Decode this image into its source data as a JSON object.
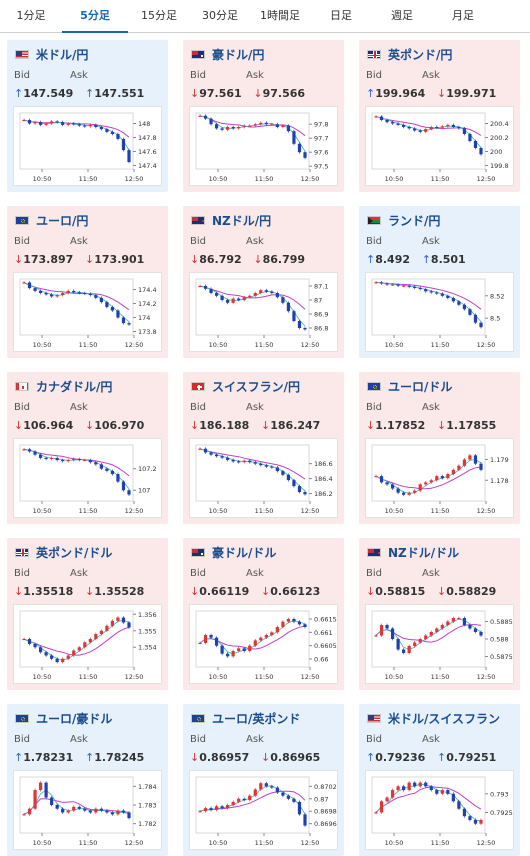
{
  "tabs": [
    {
      "label": "1分足",
      "active": false
    },
    {
      "label": "5分足",
      "active": true
    },
    {
      "label": "15分足",
      "active": false
    },
    {
      "label": "30分足",
      "active": false
    },
    {
      "label": "1時間足",
      "active": false
    },
    {
      "label": "日足",
      "active": false
    },
    {
      "label": "週足",
      "active": false
    },
    {
      "label": "月足",
      "active": false
    }
  ],
  "labels": {
    "bid": "Bid",
    "ask": "Ask"
  },
  "colors": {
    "up_arrow": "#2e63c4",
    "down_arrow": "#d03232",
    "candle_up": "#e03535",
    "candle_down": "#2040b0",
    "ma_short": "#3ab0c0",
    "ma_long": "#c040c8"
  },
  "pairs": [
    {
      "name": "米ドル/円",
      "flag": "us",
      "bid_dir": "up",
      "bid": "147.549",
      "ask_dir": "up",
      "ask": "147.551"
    },
    {
      "name": "豪ドル/円",
      "flag": "au",
      "bid_dir": "down",
      "bid": "97.561",
      "ask_dir": "down",
      "ask": "97.566"
    },
    {
      "name": "英ポンド/円",
      "flag": "uk",
      "bid_dir": "up",
      "bid": "199.964",
      "ask_dir": "down",
      "ask": "199.971"
    },
    {
      "name": "ユーロ/円",
      "flag": "eu",
      "bid_dir": "down",
      "bid": "173.897",
      "ask_dir": "down",
      "ask": "173.901"
    },
    {
      "name": "NZドル/円",
      "flag": "nz",
      "bid_dir": "down",
      "bid": "86.792",
      "ask_dir": "down",
      "ask": "86.799"
    },
    {
      "name": "ランド/円",
      "flag": "za",
      "bid_dir": "up",
      "bid": "8.492",
      "ask_dir": "up",
      "ask": "8.501"
    },
    {
      "name": "カナダドル/円",
      "flag": "ca",
      "bid_dir": "down",
      "bid": "106.964",
      "ask_dir": "down",
      "ask": "106.970"
    },
    {
      "name": "スイスフラン/円",
      "flag": "ch",
      "bid_dir": "down",
      "bid": "186.188",
      "ask_dir": "down",
      "ask": "186.247"
    },
    {
      "name": "ユーロ/ドル",
      "flag": "eu",
      "bid_dir": "down",
      "bid": "1.17852",
      "ask_dir": "down",
      "ask": "1.17855"
    },
    {
      "name": "英ポンド/ドル",
      "flag": "uk",
      "bid_dir": "down",
      "bid": "1.35518",
      "ask_dir": "down",
      "ask": "1.35528"
    },
    {
      "name": "豪ドル/ドル",
      "flag": "au",
      "bid_dir": "down",
      "bid": "0.66119",
      "ask_dir": "down",
      "ask": "0.66123"
    },
    {
      "name": "NZドル/ドル",
      "flag": "nz",
      "bid_dir": "down",
      "bid": "0.58815",
      "ask_dir": "down",
      "ask": "0.58829"
    },
    {
      "name": "ユーロ/豪ドル",
      "flag": "eu",
      "bid_dir": "up",
      "bid": "1.78231",
      "ask_dir": "up",
      "ask": "1.78245"
    },
    {
      "name": "ユーロ/英ポンド",
      "flag": "eu",
      "bid_dir": "down",
      "bid": "0.86957",
      "ask_dir": "down",
      "ask": "0.86965"
    },
    {
      "name": "米ドル/スイスフラン",
      "flag": "us",
      "bid_dir": "up",
      "bid": "0.79236",
      "ask_dir": "up",
      "ask": "0.79251"
    }
  ],
  "chart_data": [
    {
      "type": "line",
      "x_ticks": [
        "10:50",
        "11:50",
        "12:50"
      ],
      "y_ticks": [
        "148",
        "147.8",
        "147.6",
        "147.4"
      ],
      "ylim": [
        147.35,
        148.15
      ],
      "series": [
        {
          "values": [
            148.05,
            148.0,
            148.02,
            147.98,
            148.0,
            148.03,
            148.02,
            147.98,
            148.0,
            147.99,
            147.97,
            147.96,
            147.98,
            147.95,
            147.92,
            147.88,
            147.85,
            147.78,
            147.62,
            147.45
          ]
        }
      ]
    },
    {
      "type": "line",
      "x_ticks": [
        "10:50",
        "11:50",
        "12:50"
      ],
      "y_ticks": [
        "97.8",
        "97.7",
        "97.6",
        "97.5"
      ],
      "ylim": [
        97.48,
        97.88
      ],
      "series": [
        {
          "values": [
            97.86,
            97.84,
            97.8,
            97.77,
            97.76,
            97.78,
            97.77,
            97.78,
            97.79,
            97.79,
            97.8,
            97.81,
            97.8,
            97.8,
            97.78,
            97.79,
            97.75,
            97.66,
            97.6,
            97.56
          ]
        }
      ]
    },
    {
      "type": "line",
      "x_ticks": [
        "10:50",
        "11:50",
        "12:50"
      ],
      "y_ticks": [
        "200.4",
        "200.2",
        "200",
        "199.8"
      ],
      "ylim": [
        199.75,
        200.55
      ],
      "series": [
        {
          "values": [
            200.5,
            200.45,
            200.42,
            200.4,
            200.38,
            200.35,
            200.33,
            200.3,
            200.28,
            200.32,
            200.35,
            200.34,
            200.36,
            200.38,
            200.35,
            200.33,
            200.25,
            200.15,
            200.05,
            199.96
          ]
        }
      ]
    },
    {
      "type": "line",
      "x_ticks": [
        "10:50",
        "11:50",
        "12:50"
      ],
      "y_ticks": [
        "174.4",
        "174.2",
        "174",
        "173.8"
      ],
      "ylim": [
        173.75,
        174.55
      ],
      "series": [
        {
          "values": [
            174.5,
            174.42,
            174.38,
            174.35,
            174.33,
            174.3,
            174.32,
            174.35,
            174.38,
            174.36,
            174.35,
            174.34,
            174.32,
            174.28,
            174.22,
            174.15,
            174.1,
            174.0,
            173.92,
            173.9
          ]
        }
      ]
    },
    {
      "type": "line",
      "x_ticks": [
        "10:50",
        "11:50",
        "12:50"
      ],
      "y_ticks": [
        "87.1",
        "87",
        "86.9",
        "86.8"
      ],
      "ylim": [
        86.75,
        87.15
      ],
      "series": [
        {
          "values": [
            87.1,
            87.08,
            87.05,
            87.03,
            87.0,
            86.98,
            87.01,
            87.0,
            87.02,
            87.03,
            87.05,
            87.07,
            87.06,
            87.05,
            87.02,
            86.98,
            86.92,
            86.85,
            86.8,
            86.79
          ]
        }
      ]
    },
    {
      "type": "line",
      "x_ticks": [
        "10:50",
        "11:50",
        "12:50"
      ],
      "y_ticks": [
        "8.52",
        "8.5"
      ],
      "ylim": [
        8.485,
        8.535
      ],
      "series": [
        {
          "values": [
            8.532,
            8.531,
            8.53,
            8.53,
            8.529,
            8.529,
            8.528,
            8.527,
            8.526,
            8.524,
            8.523,
            8.522,
            8.52,
            8.518,
            8.515,
            8.512,
            8.508,
            8.503,
            8.496,
            8.492
          ]
        }
      ]
    },
    {
      "type": "line",
      "x_ticks": [
        "10:50",
        "11:50",
        "12:50"
      ],
      "y_ticks": [
        "107.2",
        "107"
      ],
      "ylim": [
        106.9,
        107.42
      ],
      "series": [
        {
          "values": [
            107.38,
            107.36,
            107.33,
            107.3,
            107.29,
            107.3,
            107.28,
            107.27,
            107.28,
            107.29,
            107.28,
            107.28,
            107.26,
            107.24,
            107.2,
            107.18,
            107.15,
            107.08,
            107.0,
            106.96
          ]
        }
      ]
    },
    {
      "type": "line",
      "x_ticks": [
        "10:50",
        "11:50",
        "12:50"
      ],
      "y_ticks": [
        "186.6",
        "186.4",
        "186.2"
      ],
      "ylim": [
        186.1,
        186.85
      ],
      "series": [
        {
          "values": [
            186.8,
            186.75,
            186.72,
            186.7,
            186.68,
            186.65,
            186.63,
            186.62,
            186.64,
            186.62,
            186.6,
            186.58,
            186.56,
            186.55,
            186.5,
            186.45,
            186.38,
            186.3,
            186.22,
            186.19
          ]
        }
      ]
    },
    {
      "type": "line",
      "x_ticks": [
        "10:50",
        "11:50",
        "12:50"
      ],
      "y_ticks": [
        "1.179",
        "1.178"
      ],
      "ylim": [
        1.177,
        1.1797
      ],
      "series": [
        {
          "values": [
            1.1782,
            1.1779,
            1.1778,
            1.1776,
            1.1774,
            1.1773,
            1.1774,
            1.1775,
            1.1778,
            1.1779,
            1.178,
            1.1782,
            1.1781,
            1.1783,
            1.1785,
            1.1787,
            1.179,
            1.1792,
            1.1788,
            1.1785
          ]
        }
      ]
    },
    {
      "type": "line",
      "x_ticks": [
        "10:50",
        "11:50",
        "12:50"
      ],
      "y_ticks": [
        "1.356",
        "1.355",
        "1.354"
      ],
      "ylim": [
        1.3528,
        1.3562
      ],
      "series": [
        {
          "values": [
            1.3545,
            1.3542,
            1.354,
            1.3537,
            1.3535,
            1.3533,
            1.3531,
            1.3533,
            1.3535,
            1.3538,
            1.354,
            1.3543,
            1.3545,
            1.3548,
            1.355,
            1.3553,
            1.3556,
            1.3558,
            1.3555,
            1.3552
          ]
        }
      ]
    },
    {
      "type": "line",
      "x_ticks": [
        "10:50",
        "11:50",
        "12:50"
      ],
      "y_ticks": [
        "0.6615",
        "0.661",
        "0.6605",
        "0.66"
      ],
      "ylim": [
        0.6597,
        0.6618
      ],
      "series": [
        {
          "values": [
            0.6606,
            0.6609,
            0.6608,
            0.6605,
            0.6602,
            0.6601,
            0.6603,
            0.6604,
            0.6603,
            0.6605,
            0.6607,
            0.6608,
            0.6609,
            0.661,
            0.6612,
            0.6614,
            0.6615,
            0.6614,
            0.6613,
            0.6612
          ]
        }
      ]
    },
    {
      "type": "line",
      "x_ticks": [
        "10:50",
        "11:50",
        "12:50"
      ],
      "y_ticks": [
        "0.5885",
        "0.588",
        "0.5875"
      ],
      "ylim": [
        0.5872,
        0.5888
      ],
      "series": [
        {
          "values": [
            0.5881,
            0.5884,
            0.5883,
            0.588,
            0.5877,
            0.5876,
            0.5878,
            0.5879,
            0.588,
            0.5881,
            0.5882,
            0.5883,
            0.5884,
            0.5885,
            0.5886,
            0.5886,
            0.5884,
            0.5883,
            0.5882,
            0.5881
          ]
        }
      ]
    },
    {
      "type": "line",
      "x_ticks": [
        "10:50",
        "11:50",
        "12:50"
      ],
      "y_ticks": [
        "1.784",
        "1.783",
        "1.782"
      ],
      "ylim": [
        1.7815,
        1.7845
      ],
      "series": [
        {
          "values": [
            1.7825,
            1.7828,
            1.7838,
            1.7842,
            1.7834,
            1.783,
            1.7828,
            1.7826,
            1.7827,
            1.7829,
            1.7828,
            1.7827,
            1.7826,
            1.7828,
            1.7827,
            1.7826,
            1.7825,
            1.7827,
            1.7826,
            1.7823
          ]
        }
      ]
    },
    {
      "type": "line",
      "x_ticks": [
        "10:50",
        "11:50",
        "12:50"
      ],
      "y_ticks": [
        "0.8702",
        "0.87",
        "0.8698",
        "0.8696"
      ],
      "ylim": [
        0.86945,
        0.87035
      ],
      "series": [
        {
          "values": [
            0.8698,
            0.86985,
            0.86982,
            0.86988,
            0.86985,
            0.8699,
            0.86995,
            0.87,
            0.86998,
            0.87005,
            0.87015,
            0.87025,
            0.8702,
            0.87018,
            0.8701,
            0.87005,
            0.87,
            0.86995,
            0.86975,
            0.86957
          ]
        }
      ]
    },
    {
      "type": "line",
      "x_ticks": [
        "10:50",
        "11:50",
        "12:50"
      ],
      "y_ticks": [
        "0.793",
        "0.7925"
      ],
      "ylim": [
        0.79195,
        0.79345
      ],
      "series": [
        {
          "values": [
            0.7925,
            0.7928,
            0.7929,
            0.7931,
            0.7932,
            0.7931,
            0.7933,
            0.7932,
            0.7933,
            0.7932,
            0.7931,
            0.793,
            0.7931,
            0.793,
            0.7928,
            0.7926,
            0.7924,
            0.7923,
            0.7922,
            0.7923
          ]
        }
      ]
    }
  ]
}
